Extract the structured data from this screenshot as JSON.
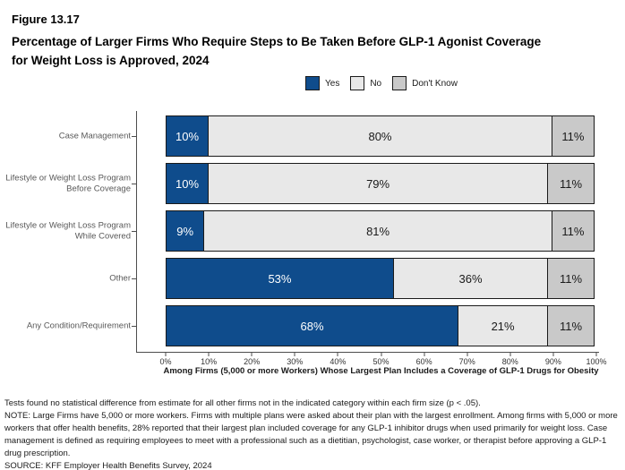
{
  "figure": {
    "label": "Figure 13.17",
    "title_lines": [
      "Percentage of Larger Firms Who Require Steps to Be Taken Before GLP-1 Agonist Coverage",
      "for Weight Loss is Approved, 2024"
    ]
  },
  "legend": [
    {
      "label": "Yes",
      "color": "#0F4C8C"
    },
    {
      "label": "No",
      "color": "#E8E8E8"
    },
    {
      "label": "Don't Know",
      "color": "#C9C9C9"
    }
  ],
  "chart_data": {
    "type": "bar",
    "orientation": "horizontal-stacked",
    "title": "Percentage of Larger Firms Who Require Steps to Be Taken Before GLP-1 Agonist Coverage for Weight Loss is Approved, 2024",
    "categories": [
      "Case Management",
      "Lifestyle or Weight Loss Program Before Coverage",
      "Lifestyle or Weight Loss Program While Covered",
      "Other",
      "Any Condition/Requirement"
    ],
    "categories_display": [
      [
        "Case Management"
      ],
      [
        "Lifestyle or Weight Loss Program",
        "Before Coverage"
      ],
      [
        "Lifestyle or Weight Loss Program",
        "While Covered"
      ],
      [
        "Other"
      ],
      [
        "Any Condition/Requirement"
      ]
    ],
    "series": [
      {
        "name": "Yes",
        "color": "#0F4C8C",
        "text_color": "#ffffff",
        "values": [
          10,
          10,
          9,
          53,
          68
        ]
      },
      {
        "name": "No",
        "color": "#E8E8E8",
        "text_color": "#1a1a1a",
        "values": [
          80,
          79,
          81,
          36,
          21
        ]
      },
      {
        "name": "Don't Know",
        "color": "#C9C9C9",
        "text_color": "#1a1a1a",
        "values": [
          11,
          11,
          11,
          11,
          11
        ]
      }
    ],
    "values_format": "percent",
    "xlim": [
      0,
      100
    ],
    "x_ticks": [
      "0%",
      "10%",
      "20%",
      "30%",
      "40%",
      "50%",
      "60%",
      "70%",
      "80%",
      "90%",
      "100%"
    ],
    "xlabel": "Among Firms (5,000 or more Workers) Whose Largest Plan Includes a Coverage of GLP-1 Drugs for Obesity",
    "ylabel": "",
    "grid": false,
    "legend_position": "top"
  },
  "notes": {
    "stat_note": "Tests found no statistical difference from estimate for all other firms not in the indicated category within each firm size (p < .05).",
    "note": "NOTE: Large Firms have 5,000 or more workers.  Firms with multiple plans were asked about their plan with the largest enrollment.  Among firms with 5,000 or more workers that offer health benefits, 28% reported that their largest plan included coverage for any GLP-1 inhibitor drugs when used primarily for weight loss. Case management is defined as requiring employees to meet with a professional such as a dietitian, psychologist, case worker, or therapist before approving a GLP-1 drug prescription.",
    "source": "SOURCE: KFF Employer Health Benefits Survey, 2024"
  }
}
